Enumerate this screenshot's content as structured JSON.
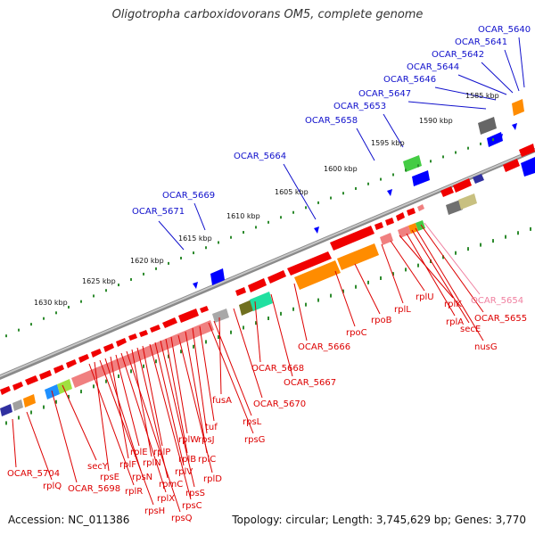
{
  "title": "Oligotropha carboxidovorans OM5, complete genome",
  "footer": {
    "accession": "Accession: NC_011386",
    "topology": "Topology: circular; Length: 3,745,629 bp; Genes: 3,770"
  },
  "colors": {
    "background": "#ffffff",
    "backbone_dark": "#777777",
    "backbone_light": "#c8c8c8",
    "tick": "#2e8b2e",
    "label_blue": "#1010cc",
    "label_red": "#dd0000",
    "label_pink": "#f080a0",
    "gene_red": "#f00000",
    "gene_orange": "#ff8c00",
    "gene_salmon": "#f08080",
    "gene_gray": "#808080",
    "gene_blue": "#0000ff"
  },
  "scale_labels": [
    "1585 kbp",
    "1590 kbp",
    "1595 kbp",
    "1600 kbp",
    "1605 kbp",
    "1610 kbp",
    "1615 kbp",
    "1620 kbp",
    "1625 kbp",
    "1630 kbp"
  ],
  "labels_top": [
    "OCAR_5640",
    "OCAR_5641",
    "OCAR_5642",
    "OCAR_5644",
    "OCAR_5646",
    "OCAR_5647",
    "OCAR_5653",
    "OCAR_5658",
    "OCAR_5664",
    "OCAR_5669",
    "OCAR_5671"
  ],
  "labels_bottom": [
    "OCAR_5654",
    "OCAR_5655",
    "nusG",
    "secE",
    "rplA",
    "rplK",
    "rplU",
    "rplL",
    "rpoB",
    "rpoC",
    "OCAR_5666",
    "OCAR_5667",
    "OCAR_5668",
    "OCAR_5670",
    "fusA",
    "rpsL",
    "rpsG",
    "tuf",
    "rpsJ",
    "rplC",
    "rplD",
    "rplW",
    "rplB",
    "rpsS",
    "rplV",
    "rpsC",
    "rplP",
    "rpmC",
    "rplN",
    "rpsQ",
    "rplX",
    "rplE",
    "rplF",
    "rpsN",
    "rpsH",
    "rpsE",
    "rplR",
    "secY",
    "OCAR_5698",
    "rplQ",
    "OCAR_5704"
  ]
}
